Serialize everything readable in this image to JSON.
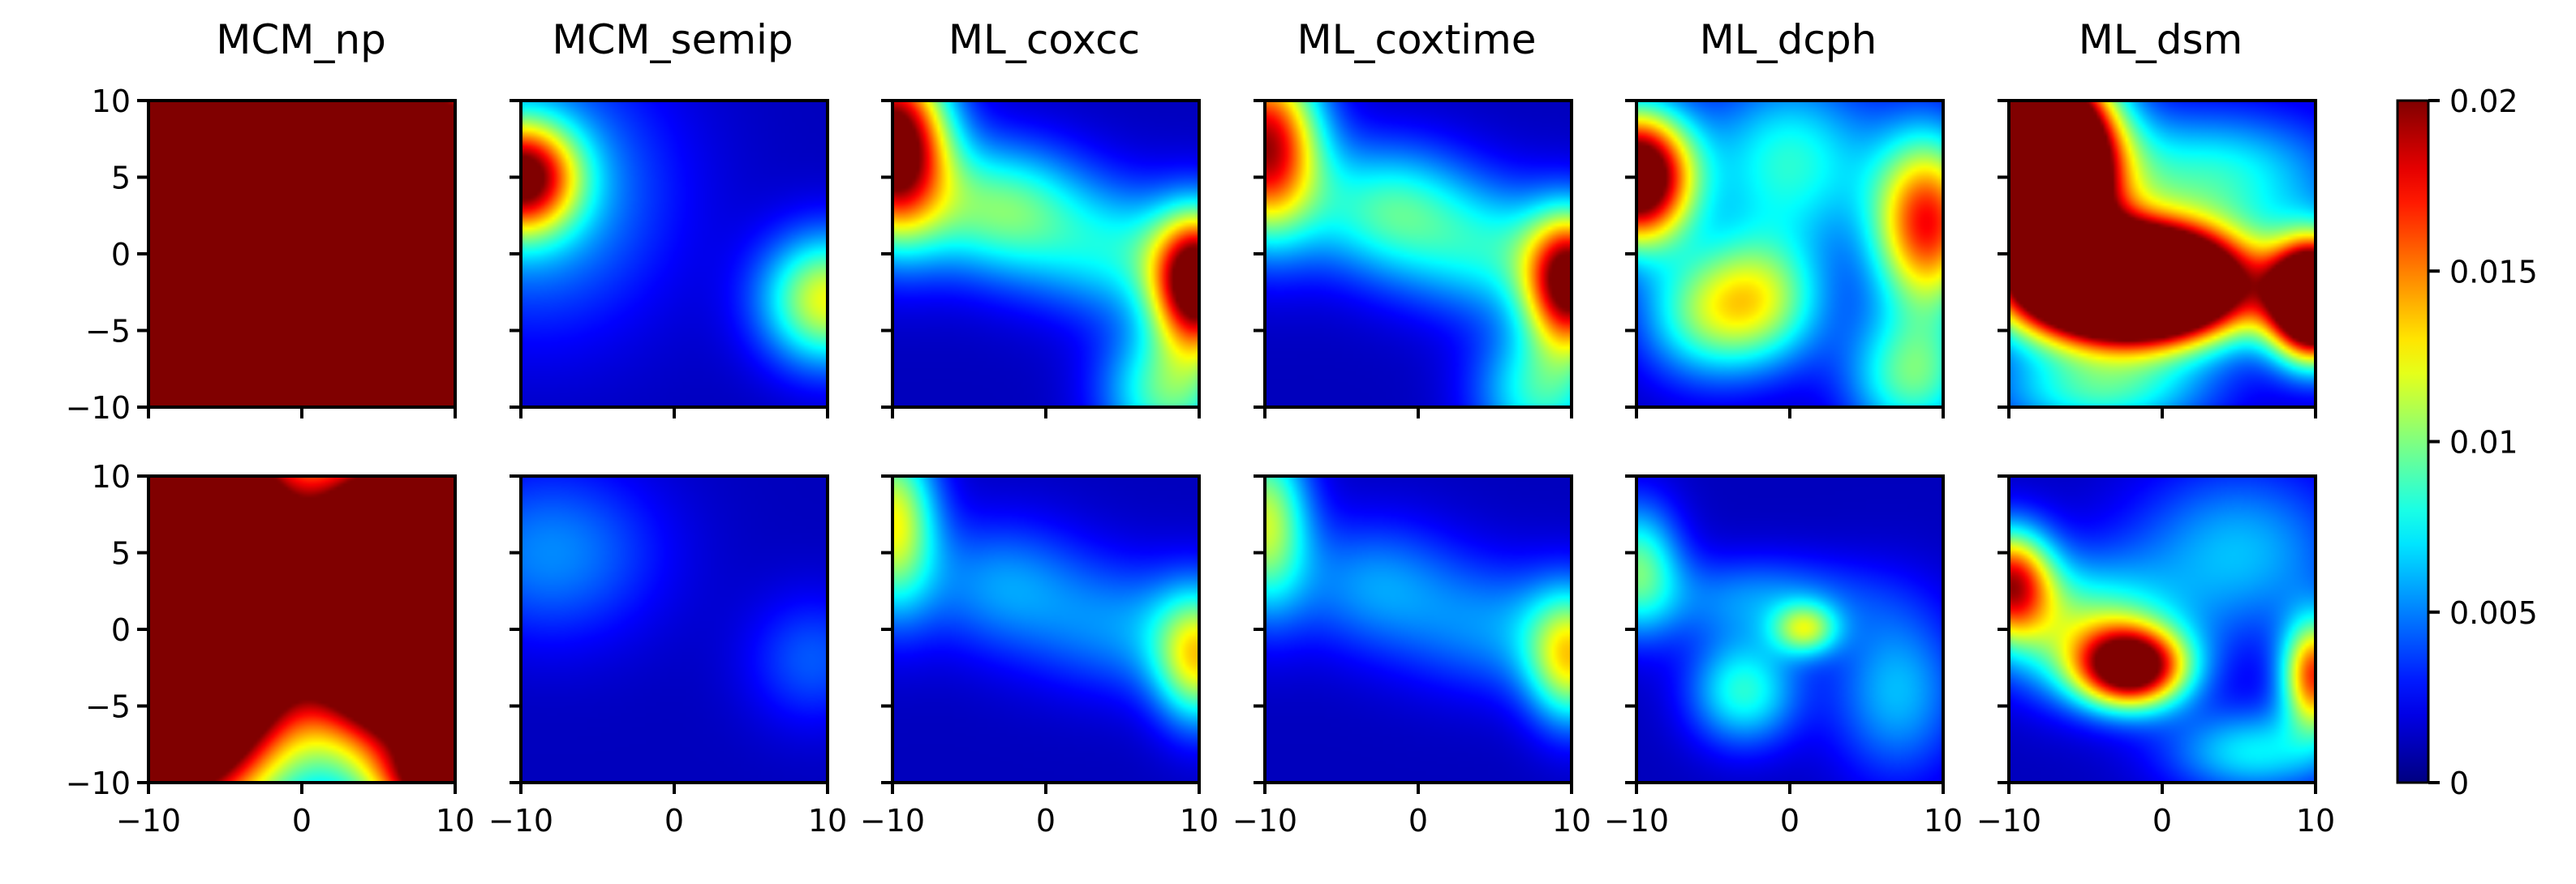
{
  "chart_data": {
    "type": "heatmap",
    "colormap": "jet",
    "columns": [
      "MCM_np",
      "MCM_semip",
      "ML_coxcc",
      "ML_coxtime",
      "ML_dcph",
      "ML_dsm"
    ],
    "rows": 2,
    "x_range": [
      -10,
      10
    ],
    "y_range": [
      -10,
      10
    ],
    "x_ticks": [
      -10,
      0,
      10
    ],
    "y_ticks": [
      10,
      5,
      0,
      -5,
      -10
    ],
    "x_tick_labels": [
      "−10",
      "0",
      "10"
    ],
    "y_tick_labels": [
      "10",
      "5",
      "0",
      "−5",
      "−10"
    ],
    "colorbar": {
      "vmin": 0,
      "vmax": 0.02,
      "ticks": [
        0,
        0.005,
        0.01,
        0.015,
        0.02
      ],
      "tick_labels": [
        "0",
        "0.005",
        "0.01",
        "0.015",
        "0.02"
      ]
    },
    "panels": [
      {
        "row": 0,
        "col": 0,
        "name": "MCM_np top",
        "blobs": [
          {
            "x": -9,
            "y": 0,
            "sx": 5,
            "sy": 12,
            "v": 0.07
          },
          {
            "x": 7,
            "y": -1,
            "sx": 5,
            "sy": 7,
            "v": 0.07
          },
          {
            "x": -4,
            "y": 9,
            "sx": 4,
            "sy": 2,
            "v": 0.03
          }
        ]
      },
      {
        "row": 0,
        "col": 1,
        "name": "MCM_semip top",
        "blobs": [
          {
            "x": -10,
            "y": 5,
            "sx": 2.5,
            "sy": 2.5,
            "v": 0.0165
          },
          {
            "x": -9,
            "y": 4,
            "sx": 6,
            "sy": 6,
            "v": 0.005
          },
          {
            "x": 10,
            "y": -3,
            "sx": 3,
            "sy": 3,
            "v": 0.011
          }
        ]
      },
      {
        "row": 0,
        "col": 2,
        "name": "ML_coxcc top",
        "blobs": [
          {
            "x": -10,
            "y": 7,
            "sx": 2.5,
            "sy": 4,
            "v": 0.022
          },
          {
            "x": 10,
            "y": -2,
            "sx": 2,
            "sy": 3,
            "v": 0.02
          },
          {
            "x": -3,
            "y": 3,
            "sx": 4,
            "sy": 3,
            "v": 0.008
          },
          {
            "x": 6,
            "y": 0,
            "sx": 5,
            "sy": 3,
            "v": 0.006
          },
          {
            "x": 8,
            "y": -9,
            "sx": 3,
            "sy": 3,
            "v": 0.008
          }
        ]
      },
      {
        "row": 0,
        "col": 3,
        "name": "ML_coxtime top",
        "blobs": [
          {
            "x": -10,
            "y": 7,
            "sx": 2.5,
            "sy": 4,
            "v": 0.018
          },
          {
            "x": 10,
            "y": -2,
            "sx": 2,
            "sy": 3,
            "v": 0.018
          },
          {
            "x": -2,
            "y": 3,
            "sx": 4,
            "sy": 3,
            "v": 0.007
          },
          {
            "x": 6,
            "y": 0,
            "sx": 5,
            "sy": 3,
            "v": 0.006
          },
          {
            "x": 8,
            "y": -9,
            "sx": 3,
            "sy": 3,
            "v": 0.007
          }
        ]
      },
      {
        "row": 0,
        "col": 4,
        "name": "ML_dcph top",
        "blobs": [
          {
            "x": -10,
            "y": 5,
            "sx": 2.5,
            "sy": 3,
            "v": 0.024
          },
          {
            "x": 9,
            "y": 2,
            "sx": 2.5,
            "sy": 4,
            "v": 0.016
          },
          {
            "x": -2,
            "y": -3,
            "sx": 3,
            "sy": 3,
            "v": 0.009
          },
          {
            "x": 0,
            "y": 6,
            "sx": 4,
            "sy": 4,
            "v": 0.007
          },
          {
            "x": 8,
            "y": -8,
            "sx": 3,
            "sy": 3,
            "v": 0.008
          },
          {
            "x": -6,
            "y": -4,
            "sx": 3,
            "sy": 3,
            "v": 0.006
          }
        ]
      },
      {
        "row": 0,
        "col": 5,
        "name": "ML_dsm top",
        "blobs": [
          {
            "x": -8,
            "y": 6,
            "sx": 3,
            "sy": 4,
            "v": 0.05
          },
          {
            "x": -2,
            "y": -2,
            "sx": 5,
            "sy": 2.5,
            "v": 0.05
          },
          {
            "x": 10,
            "y": -3,
            "sx": 2,
            "sy": 2.5,
            "v": 0.035
          },
          {
            "x": 3,
            "y": 5,
            "sx": 6,
            "sy": 3,
            "v": 0.007
          },
          {
            "x": -4,
            "y": -9,
            "sx": 5,
            "sy": 2,
            "v": 0.007
          }
        ]
      },
      {
        "row": 1,
        "col": 0,
        "name": "MCM_np bottom",
        "blobs": [
          {
            "x": -9,
            "y": 2,
            "sx": 5,
            "sy": 8,
            "v": 0.07
          },
          {
            "x": 8,
            "y": 2,
            "sx": 5,
            "sy": 6,
            "v": 0.06
          },
          {
            "x": 10,
            "y": -10,
            "sx": 3,
            "sy": 2,
            "v": 0.02
          }
        ]
      },
      {
        "row": 1,
        "col": 1,
        "name": "MCM_semip bottom",
        "blobs": [
          {
            "x": -8,
            "y": 5,
            "sx": 5,
            "sy": 4,
            "v": 0.004
          },
          {
            "x": 9,
            "y": -2,
            "sx": 3,
            "sy": 3,
            "v": 0.003
          }
        ]
      },
      {
        "row": 1,
        "col": 2,
        "name": "ML_coxcc bottom",
        "blobs": [
          {
            "x": -10,
            "y": 7,
            "sx": 2,
            "sy": 4,
            "v": 0.011
          },
          {
            "x": 10,
            "y": -2,
            "sx": 2,
            "sy": 3,
            "v": 0.01
          },
          {
            "x": -3,
            "y": 3,
            "sx": 4,
            "sy": 3,
            "v": 0.004
          },
          {
            "x": 6,
            "y": 0,
            "sx": 5,
            "sy": 3,
            "v": 0.004
          }
        ]
      },
      {
        "row": 1,
        "col": 3,
        "name": "ML_coxtime bottom",
        "blobs": [
          {
            "x": -10,
            "y": 7,
            "sx": 2,
            "sy": 4,
            "v": 0.01
          },
          {
            "x": 10,
            "y": -2,
            "sx": 2,
            "sy": 3,
            "v": 0.01
          },
          {
            "x": -3,
            "y": 3,
            "sx": 4,
            "sy": 3,
            "v": 0.004
          },
          {
            "x": 6,
            "y": 0,
            "sx": 5,
            "sy": 3,
            "v": 0.004
          }
        ]
      },
      {
        "row": 1,
        "col": 4,
        "name": "ML_dcph bottom",
        "blobs": [
          {
            "x": -10,
            "y": 4,
            "sx": 2,
            "sy": 3,
            "v": 0.008
          },
          {
            "x": 1,
            "y": 0,
            "sx": 1.5,
            "sy": 1.2,
            "v": 0.008
          },
          {
            "x": -3,
            "y": -4,
            "sx": 2.5,
            "sy": 2.5,
            "v": 0.007
          },
          {
            "x": 7,
            "y": -4,
            "sx": 3,
            "sy": 4,
            "v": 0.005
          },
          {
            "x": -2,
            "y": 2,
            "sx": 5,
            "sy": 2,
            "v": 0.004
          }
        ]
      },
      {
        "row": 1,
        "col": 5,
        "name": "ML_dsm bottom",
        "blobs": [
          {
            "x": -10,
            "y": 3,
            "sx": 2,
            "sy": 2.5,
            "v": 0.016
          },
          {
            "x": -2,
            "y": -2.5,
            "sx": 2.5,
            "sy": 1.8,
            "v": 0.02
          },
          {
            "x": 10,
            "y": -3,
            "sx": 1.5,
            "sy": 2.5,
            "v": 0.015
          },
          {
            "x": -5,
            "y": 0,
            "sx": 4,
            "sy": 3,
            "v": 0.008
          },
          {
            "x": 5,
            "y": 5,
            "sx": 5,
            "sy": 4,
            "v": 0.005
          },
          {
            "x": 6,
            "y": -8,
            "sx": 4,
            "sy": 2,
            "v": 0.006
          }
        ]
      }
    ]
  }
}
